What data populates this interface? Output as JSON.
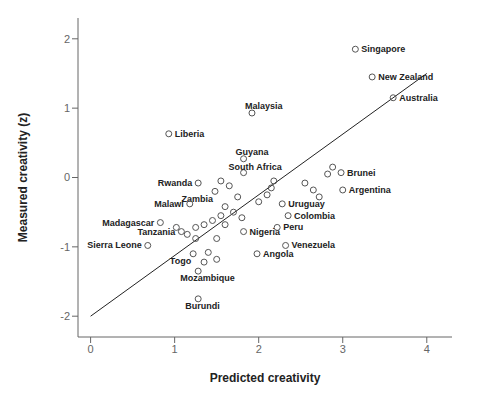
{
  "chart_data": {
    "type": "scatter",
    "xlabel": "Predicted creativity",
    "ylabel": "Measured creativity (z)",
    "xlim": [
      -0.15,
      4.3
    ],
    "ylim": [
      -2.3,
      2.3
    ],
    "xticks": [
      0,
      1,
      2,
      3,
      4
    ],
    "yticks": [
      -2,
      -1,
      0,
      1,
      2
    ],
    "series": [
      {
        "type": "line",
        "color": "#222222",
        "x": [
          0.0,
          4.0
        ],
        "values": [
          -2.0,
          1.5
        ]
      },
      {
        "type": "scatter",
        "color": "#555555",
        "marker": "circle",
        "x": [
          3.15,
          3.35,
          3.6,
          1.92,
          0.93,
          1.82,
          1.82,
          2.98,
          1.28,
          1.48,
          3.0,
          1.18,
          2.28,
          0.83,
          2.35,
          1.08,
          1.82,
          2.22,
          0.68,
          2.32,
          1.22,
          1.98,
          1.28,
          1.28,
          1.55,
          1.65,
          1.75,
          1.6,
          1.7,
          1.8,
          1.55,
          1.45,
          1.35,
          1.25,
          1.15,
          1.25,
          1.02,
          1.5,
          1.6,
          2.0,
          2.1,
          2.15,
          2.18,
          2.55,
          2.65,
          2.72,
          2.82,
          2.88,
          1.4,
          1.5,
          1.35
        ],
        "values": [
          1.85,
          1.45,
          1.15,
          0.93,
          0.63,
          0.27,
          0.07,
          0.07,
          -0.08,
          -0.2,
          -0.18,
          -0.38,
          -0.38,
          -0.65,
          -0.55,
          -0.78,
          -0.78,
          -0.72,
          -0.98,
          -0.98,
          -1.1,
          -1.1,
          -1.35,
          -1.75,
          -0.05,
          -0.12,
          -0.28,
          -0.42,
          -0.5,
          -0.58,
          -0.55,
          -0.62,
          -0.68,
          -0.72,
          -0.82,
          -0.88,
          -0.72,
          -0.88,
          -0.68,
          -0.35,
          -0.25,
          -0.15,
          -0.05,
          -0.08,
          -0.18,
          -0.28,
          0.05,
          0.15,
          -1.08,
          -1.18,
          -1.22
        ],
        "labels": [
          "Singapore",
          "New Zealand",
          "Australia",
          "Malaysia",
          "Liberia",
          "Guyana",
          "South Africa",
          "Brunei",
          "Rwanda",
          "Zambia",
          "Argentina",
          "Malawi",
          "Uruguay",
          "Madagascar",
          "Colombia",
          "Tanzania",
          "Nigeria",
          "Peru",
          "Sierra Leone",
          "Venezuela",
          "Togo",
          "Angola",
          "Mozambique",
          "Burundi",
          null,
          null,
          null,
          null,
          null,
          null,
          null,
          null,
          null,
          null,
          null,
          null,
          null,
          null,
          null,
          null,
          null,
          null,
          null,
          null,
          null,
          null,
          null,
          null,
          null,
          null,
          null
        ]
      }
    ]
  }
}
